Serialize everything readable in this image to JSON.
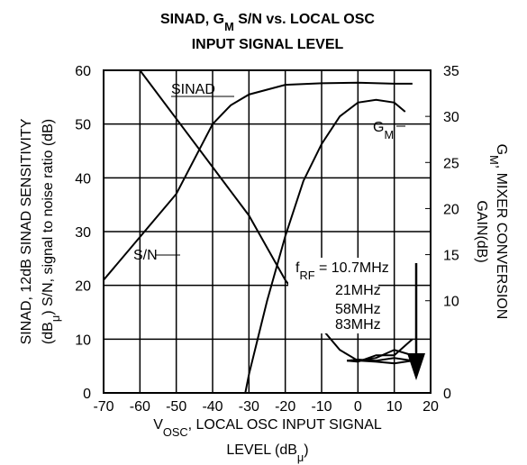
{
  "chart_data": {
    "type": "line",
    "title": [
      [
        {
          "t": "SINAD, G",
          "sub": false
        },
        {
          "t": "M",
          "sub": true
        },
        {
          "t": " S/N vs. LOCAL OSC",
          "sub": false
        }
      ],
      [
        {
          "t": "INPUT SIGNAL LEVEL",
          "sub": false
        }
      ]
    ],
    "ylabel": [
      [
        {
          "t": "SINAD, 12dB SINAD SENSITIVITY",
          "sub": false
        }
      ],
      [
        {
          "t": "(dB",
          "sub": false
        },
        {
          "t": "μ",
          "sub": true
        },
        {
          "t": ") S/N, signal to noise ratio (dB)",
          "sub": false
        }
      ]
    ],
    "y2label": [
      [
        {
          "t": "G",
          "sub": false
        },
        {
          "t": "M",
          "sub": true
        },
        {
          "t": ", MIXER CONVERSION",
          "sub": false
        }
      ],
      [
        {
          "t": "GAIN(dB)",
          "sub": false
        }
      ]
    ],
    "xlabel": [
      [
        {
          "t": "V",
          "sub": false
        },
        {
          "t": "OSC",
          "sub": true
        },
        {
          "t": ", LOCAL OSC INPUT SIGNAL",
          "sub": false
        }
      ],
      [
        {
          "t": "LEVEL (dB",
          "sub": false
        },
        {
          "t": "μ",
          "sub": true
        },
        {
          "t": ")",
          "sub": false
        }
      ]
    ],
    "xlim": [
      -70,
      20
    ],
    "xticks": [
      -70,
      -60,
      -50,
      -40,
      -30,
      -20,
      -10,
      0,
      10,
      20
    ],
    "ylim": [
      0,
      60
    ],
    "yticks": [
      0,
      10,
      20,
      30,
      40,
      50,
      60
    ],
    "y2lim": [
      0,
      35
    ],
    "y2ticks": [
      0,
      10,
      15,
      20,
      25,
      30,
      35
    ],
    "grid": true,
    "series": [
      {
        "label": [
          {
            "t": "SINAD",
            "sub": false
          }
        ],
        "color": "#000000",
        "x": [
          -70,
          -60,
          -50,
          -40,
          -35,
          -30,
          -20,
          -10,
          0,
          10,
          15
        ],
        "values": [
          21,
          29,
          37,
          50,
          53.5,
          55.5,
          57.3,
          57.6,
          57.7,
          57.5,
          57.5
        ]
      },
      {
        "label": [
          {
            "t": "S/N",
            "sub": false
          }
        ],
        "color": "#000000",
        "x": [
          -60,
          -50,
          -40,
          -30,
          -20,
          -10,
          -5,
          0,
          5,
          10,
          15
        ],
        "values": [
          60,
          51,
          42,
          33,
          21,
          12,
          8,
          6,
          5.8,
          5.5,
          6
        ]
      },
      {
        "label": [
          {
            "t": "G",
            "sub": false
          },
          {
            "t": "M",
            "sub": true
          }
        ],
        "color": "#000000",
        "axis": "y2",
        "x": [
          -31,
          -30,
          -25,
          -20,
          -15,
          -10,
          -5,
          0,
          5,
          10,
          13
        ],
        "values": [
          0,
          2,
          10,
          17,
          23,
          27,
          30,
          31.5,
          31.8,
          31.5,
          30.5
        ]
      },
      {
        "color": "#000000",
        "x": [
          -3,
          0,
          5,
          10,
          15
        ],
        "values": [
          6,
          6,
          6.5,
          8,
          7
        ]
      },
      {
        "color": "#000000",
        "x": [
          -3,
          0,
          5,
          10,
          15
        ],
        "values": [
          6,
          5.8,
          7,
          7,
          10
        ]
      },
      {
        "color": "#000000",
        "x": [
          -3,
          0,
          5,
          10,
          15
        ],
        "values": [
          6,
          6.2,
          6,
          6.5,
          6
        ]
      }
    ],
    "annotations": [
      [
        {
          "t": "f",
          "sub": false
        },
        {
          "t": "RF",
          "sub": true
        },
        {
          "t": " = 10.7MHz",
          "sub": false
        }
      ],
      [
        {
          "t": "21MHz",
          "sub": false
        }
      ],
      [
        {
          "t": "58MHz",
          "sub": false
        }
      ],
      [
        {
          "t": "83MHz",
          "sub": false
        }
      ]
    ]
  }
}
